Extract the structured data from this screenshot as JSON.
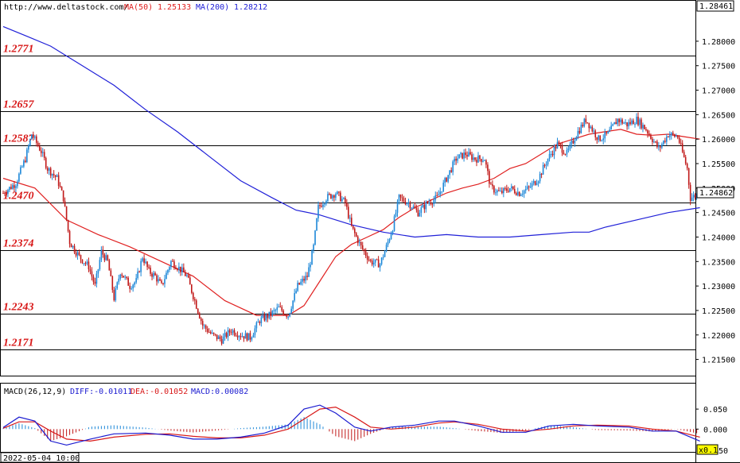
{
  "header": {
    "site": "http://www.deltastock.com/",
    "ma50_label": "MA(50)",
    "ma50_value": "1.25133",
    "ma200_label": "MA(200)",
    "ma200_value": "1.28212"
  },
  "macd_header": {
    "name": "MACD(26,12,9)",
    "diff": "DIFF:-0.01011",
    "dea": "DEA:-0.01052",
    "macd": "MACD:0.00082"
  },
  "footer": {
    "timestamp": "2022-05-04 10:00",
    "zoom": "x0.1",
    "zoom_tail": "50"
  },
  "colors": {
    "up_candle": "#1e88d8",
    "down_candle": "#c01818",
    "ma50": "#e02020",
    "ma200": "#2020d8",
    "level_label": "#d81818",
    "macd_diff": "#1a1ad0",
    "macd_dea": "#d81818"
  },
  "chart_data": {
    "type": "candlestick",
    "instrument_price_top": "1.28461",
    "current_price": "1.24862",
    "price_axis": {
      "ylim": [
        1.2125,
        1.2855
      ],
      "ticks": [
        "1.28000",
        "1.27500",
        "1.27000",
        "1.26500",
        "1.26000",
        "1.25500",
        "1.25000",
        "1.24500",
        "1.24000",
        "1.23500",
        "1.23000",
        "1.22500",
        "1.22000",
        "1.21500"
      ]
    },
    "levels": [
      {
        "label": "1.2771",
        "value": 1.2771
      },
      {
        "label": "1.2657",
        "value": 1.2657
      },
      {
        "label": "1.2587",
        "value": 1.2587
      },
      {
        "label": "1.2470",
        "value": 1.247
      },
      {
        "label": "1.2374",
        "value": 1.2374
      },
      {
        "label": "1.2243",
        "value": 1.2243
      },
      {
        "label": "1.2171",
        "value": 1.2171
      }
    ],
    "close_anchors": [
      [
        0,
        1.249
      ],
      [
        8,
        1.251
      ],
      [
        14,
        1.256
      ],
      [
        18,
        1.261
      ],
      [
        24,
        1.2575
      ],
      [
        28,
        1.254
      ],
      [
        34,
        1.252
      ],
      [
        38,
        1.248
      ],
      [
        42,
        1.239
      ],
      [
        48,
        1.236
      ],
      [
        54,
        1.234
      ],
      [
        58,
        1.23
      ],
      [
        62,
        1.237
      ],
      [
        66,
        1.235
      ],
      [
        70,
        1.2275
      ],
      [
        74,
        1.233
      ],
      [
        80,
        1.23
      ],
      [
        84,
        1.231
      ],
      [
        88,
        1.236
      ],
      [
        92,
        1.233
      ],
      [
        96,
        1.232
      ],
      [
        100,
        1.23
      ],
      [
        106,
        1.235
      ],
      [
        110,
        1.234
      ],
      [
        116,
        1.232
      ],
      [
        120,
        1.228
      ],
      [
        126,
        1.222
      ],
      [
        132,
        1.22
      ],
      [
        138,
        1.219
      ],
      [
        144,
        1.221
      ],
      [
        150,
        1.22
      ],
      [
        156,
        1.2195
      ],
      [
        162,
        1.223
      ],
      [
        168,
        1.224
      ],
      [
        174,
        1.2255
      ],
      [
        180,
        1.224
      ],
      [
        186,
        1.23
      ],
      [
        192,
        1.232
      ],
      [
        196,
        1.238
      ],
      [
        199,
        1.246
      ],
      [
        204,
        1.248
      ],
      [
        210,
        1.249
      ],
      [
        216,
        1.247
      ],
      [
        220,
        1.242
      ],
      [
        226,
        1.238
      ],
      [
        232,
        1.235
      ],
      [
        238,
        1.2345
      ],
      [
        242,
        1.238
      ],
      [
        246,
        1.242
      ],
      [
        250,
        1.248
      ],
      [
        256,
        1.247
      ],
      [
        262,
        1.245
      ],
      [
        268,
        1.247
      ],
      [
        274,
        1.248
      ],
      [
        280,
        1.252
      ],
      [
        286,
        1.256
      ],
      [
        292,
        1.257
      ],
      [
        298,
        1.256
      ],
      [
        304,
        1.256
      ],
      [
        308,
        1.25
      ],
      [
        314,
        1.249
      ],
      [
        320,
        1.25
      ],
      [
        326,
        1.249
      ],
      [
        332,
        1.25
      ],
      [
        338,
        1.252
      ],
      [
        344,
        1.256
      ],
      [
        350,
        1.259
      ],
      [
        356,
        1.257
      ],
      [
        362,
        1.261
      ],
      [
        368,
        1.264
      ],
      [
        372,
        1.262
      ],
      [
        376,
        1.26
      ],
      [
        382,
        1.261
      ],
      [
        388,
        1.264
      ],
      [
        394,
        1.263
      ],
      [
        400,
        1.264
      ],
      [
        406,
        1.262
      ],
      [
        410,
        1.26
      ],
      [
        414,
        1.258
      ],
      [
        420,
        1.261
      ],
      [
        426,
        1.2605
      ],
      [
        432,
        1.254
      ],
      [
        434,
        1.248
      ],
      [
        438,
        1.2486
      ]
    ],
    "ma50": [
      [
        0,
        1.252
      ],
      [
        20,
        1.25
      ],
      [
        40,
        1.2435
      ],
      [
        60,
        1.2405
      ],
      [
        80,
        1.238
      ],
      [
        100,
        1.235
      ],
      [
        120,
        1.232
      ],
      [
        140,
        1.227
      ],
      [
        160,
        1.224
      ],
      [
        180,
        1.224
      ],
      [
        190,
        1.226
      ],
      [
        200,
        1.231
      ],
      [
        210,
        1.236
      ],
      [
        220,
        1.2385
      ],
      [
        230,
        1.24
      ],
      [
        240,
        1.2415
      ],
      [
        250,
        1.244
      ],
      [
        260,
        1.246
      ],
      [
        270,
        1.2475
      ],
      [
        280,
        1.249
      ],
      [
        290,
        1.25
      ],
      [
        300,
        1.2508
      ],
      [
        310,
        1.252
      ],
      [
        320,
        1.254
      ],
      [
        330,
        1.255
      ],
      [
        340,
        1.257
      ],
      [
        350,
        1.259
      ],
      [
        360,
        1.26
      ],
      [
        370,
        1.261
      ],
      [
        380,
        1.2615
      ],
      [
        390,
        1.262
      ],
      [
        400,
        1.261
      ],
      [
        410,
        1.2608
      ],
      [
        420,
        1.261
      ],
      [
        430,
        1.2605
      ],
      [
        440,
        1.26
      ]
    ],
    "ma200": [
      [
        0,
        1.283
      ],
      [
        15,
        1.281
      ],
      [
        30,
        1.279
      ],
      [
        50,
        1.275
      ],
      [
        70,
        1.271
      ],
      [
        90,
        1.266
      ],
      [
        110,
        1.2615
      ],
      [
        130,
        1.2565
      ],
      [
        150,
        1.2515
      ],
      [
        170,
        1.248
      ],
      [
        185,
        1.2455
      ],
      [
        200,
        1.2445
      ],
      [
        220,
        1.2425
      ],
      [
        240,
        1.241
      ],
      [
        260,
        1.24
      ],
      [
        280,
        1.2405
      ],
      [
        300,
        1.24
      ],
      [
        320,
        1.24
      ],
      [
        340,
        1.2405
      ],
      [
        360,
        1.241
      ],
      [
        370,
        1.241
      ],
      [
        380,
        1.242
      ],
      [
        400,
        1.2435
      ],
      [
        420,
        1.245
      ],
      [
        440,
        1.246
      ]
    ],
    "macd_panel": {
      "ylim": [
        -0.055,
        0.08
      ],
      "ticks": [
        "0.050",
        "0.000"
      ],
      "diff": [
        [
          0,
          0.004
        ],
        [
          10,
          0.03
        ],
        [
          20,
          0.02
        ],
        [
          30,
          -0.03
        ],
        [
          40,
          -0.04
        ],
        [
          55,
          -0.025
        ],
        [
          70,
          -0.012
        ],
        [
          90,
          -0.01
        ],
        [
          105,
          -0.015
        ],
        [
          120,
          -0.025
        ],
        [
          135,
          -0.025
        ],
        [
          150,
          -0.02
        ],
        [
          165,
          -0.01
        ],
        [
          180,
          0.01
        ],
        [
          190,
          0.05
        ],
        [
          200,
          0.06
        ],
        [
          210,
          0.04
        ],
        [
          222,
          0.005
        ],
        [
          232,
          -0.005
        ],
        [
          245,
          0.005
        ],
        [
          260,
          0.01
        ],
        [
          275,
          0.02
        ],
        [
          285,
          0.02
        ],
        [
          300,
          0.008
        ],
        [
          315,
          -0.008
        ],
        [
          330,
          -0.008
        ],
        [
          345,
          0.008
        ],
        [
          360,
          0.012
        ],
        [
          375,
          0.008
        ],
        [
          395,
          0.005
        ],
        [
          410,
          -0.005
        ],
        [
          425,
          -0.005
        ],
        [
          440,
          -0.03
        ]
      ],
      "dea": [
        [
          0,
          0.002
        ],
        [
          10,
          0.018
        ],
        [
          20,
          0.018
        ],
        [
          30,
          -0.005
        ],
        [
          40,
          -0.025
        ],
        [
          55,
          -0.03
        ],
        [
          70,
          -0.02
        ],
        [
          90,
          -0.013
        ],
        [
          105,
          -0.012
        ],
        [
          120,
          -0.018
        ],
        [
          135,
          -0.022
        ],
        [
          150,
          -0.022
        ],
        [
          165,
          -0.015
        ],
        [
          180,
          0.0
        ],
        [
          190,
          0.025
        ],
        [
          200,
          0.05
        ],
        [
          210,
          0.055
        ],
        [
          222,
          0.03
        ],
        [
          232,
          0.005
        ],
        [
          245,
          0.0
        ],
        [
          260,
          0.005
        ],
        [
          275,
          0.015
        ],
        [
          285,
          0.018
        ],
        [
          300,
          0.012
        ],
        [
          315,
          0.0
        ],
        [
          330,
          -0.005
        ],
        [
          345,
          0.0
        ],
        [
          360,
          0.008
        ],
        [
          375,
          0.01
        ],
        [
          395,
          0.008
        ],
        [
          410,
          0.0
        ],
        [
          425,
          -0.005
        ],
        [
          440,
          -0.02
        ]
      ]
    }
  }
}
